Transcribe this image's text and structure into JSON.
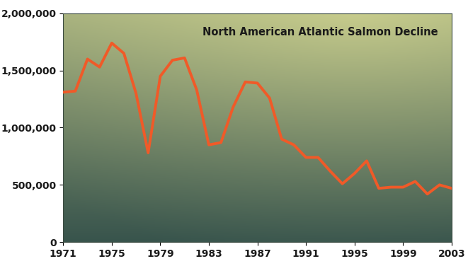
{
  "chart_data": {
    "type": "line",
    "title": "North American Atlantic Salmon Decline",
    "x": [
      1971,
      1972,
      1973,
      1974,
      1975,
      1976,
      1977,
      1978,
      1979,
      1980,
      1981,
      1982,
      1983,
      1984,
      1985,
      1986,
      1987,
      1988,
      1989,
      1990,
      1991,
      1992,
      1993,
      1994,
      1995,
      1996,
      1997,
      1998,
      1999,
      2000,
      2001,
      2002,
      2003
    ],
    "values": [
      1310000,
      1320000,
      1600000,
      1530000,
      1740000,
      1650000,
      1300000,
      780000,
      1450000,
      1590000,
      1610000,
      1330000,
      850000,
      870000,
      1180000,
      1400000,
      1390000,
      1260000,
      900000,
      850000,
      740000,
      740000,
      620000,
      510000,
      600000,
      710000,
      470000,
      480000,
      480000,
      530000,
      420000,
      500000,
      470000
    ],
    "color": "#f05a28",
    "xlim": [
      1971,
      2003
    ],
    "xticks": [
      1971,
      1975,
      1979,
      1983,
      1987,
      1991,
      1995,
      1999,
      2003
    ],
    "ylim": [
      0,
      2000000
    ],
    "yticks": [
      0,
      {
        "value": 500000,
        "label": "500,000"
      },
      {
        "value": 1000000,
        "label": "1,000,000"
      },
      {
        "value": 1500000,
        "label": "1,500,000"
      },
      {
        "value": 2000000,
        "label": "2,000,000"
      }
    ],
    "grid": false
  }
}
